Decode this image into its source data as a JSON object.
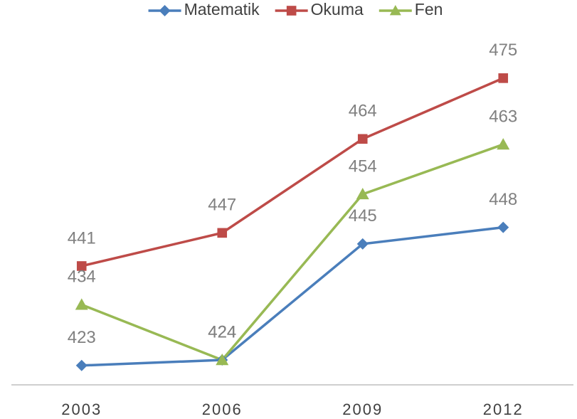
{
  "chart_data": {
    "type": "line",
    "categories": [
      "2003",
      "2006",
      "2009",
      "2012"
    ],
    "series": [
      {
        "name": "Matematik",
        "color": "#4a7ebb",
        "marker": "diamond",
        "values": [
          423,
          424,
          445,
          448
        ]
      },
      {
        "name": "Okuma",
        "color": "#be4b48",
        "marker": "square",
        "values": [
          441,
          447,
          464,
          475
        ]
      },
      {
        "name": "Fen",
        "color": "#98b954",
        "marker": "triangle",
        "values": [
          434,
          424,
          454,
          463
        ]
      }
    ],
    "ylim": [
      419.5,
      480
    ],
    "legend": "top",
    "grid": false
  }
}
